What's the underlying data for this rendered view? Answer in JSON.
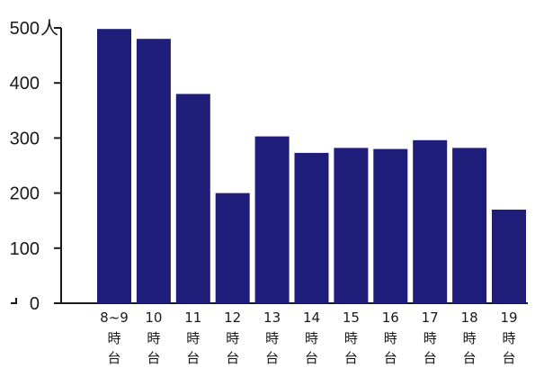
{
  "chart_data": {
    "type": "bar",
    "categories": [
      [
        "8~9",
        "時",
        "台"
      ],
      [
        "10",
        "時",
        "台"
      ],
      [
        "11",
        "時",
        "台"
      ],
      [
        "12",
        "時",
        "台"
      ],
      [
        "13",
        "時",
        "台"
      ],
      [
        "14",
        "時",
        "台"
      ],
      [
        "15",
        "時",
        "台"
      ],
      [
        "16",
        "時",
        "台"
      ],
      [
        "17",
        "時",
        "台"
      ],
      [
        "18",
        "時",
        "台"
      ],
      [
        "19",
        "時",
        "台"
      ]
    ],
    "values": [
      498,
      480,
      380,
      200,
      303,
      273,
      282,
      280,
      296,
      282,
      170
    ],
    "ylim": [
      0,
      500
    ],
    "yticks": [
      0,
      100,
      200,
      300,
      400,
      500
    ],
    "ytick_labels": [
      "0",
      "100",
      "200",
      "300",
      "400",
      "500"
    ],
    "y_unit": "人",
    "bar_color": "#1f1d7a",
    "grid": false
  }
}
